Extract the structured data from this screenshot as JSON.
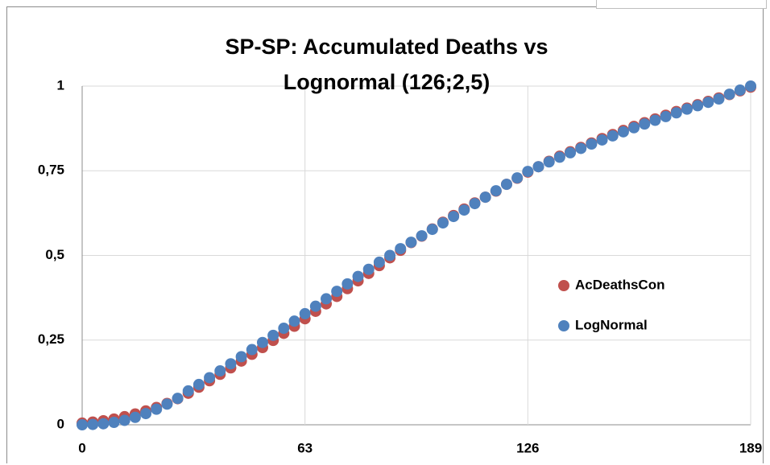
{
  "chart_data": {
    "type": "scatter",
    "title": "SP-SP: Accumulated Deaths vs Lognormal (126;2,5)",
    "x": [
      0,
      3,
      6,
      9,
      12,
      15,
      18,
      21,
      24,
      27,
      30,
      33,
      36,
      39,
      42,
      45,
      48,
      51,
      54,
      57,
      60,
      63,
      66,
      69,
      72,
      75,
      78,
      81,
      84,
      87,
      90,
      93,
      96,
      99,
      102,
      105,
      108,
      111,
      114,
      117,
      120,
      123,
      126,
      129,
      132,
      135,
      138,
      141,
      144,
      147,
      150,
      153,
      156,
      159,
      162,
      165,
      168,
      171,
      174,
      177,
      180,
      183,
      186,
      189
    ],
    "series": [
      {
        "name": "AcDeathsCon",
        "color": "#c0504d",
        "values": [
          0.005,
          0.008,
          0.012,
          0.017,
          0.024,
          0.032,
          0.041,
          0.051,
          0.063,
          0.077,
          0.093,
          0.111,
          0.13,
          0.149,
          0.168,
          0.188,
          0.208,
          0.228,
          0.249,
          0.27,
          0.291,
          0.313,
          0.335,
          0.357,
          0.379,
          0.402,
          0.425,
          0.447,
          0.47,
          0.493,
          0.515,
          0.538,
          0.557,
          0.578,
          0.598,
          0.618,
          0.637,
          0.655,
          0.672,
          0.69,
          0.71,
          0.728,
          0.746,
          0.762,
          0.778,
          0.793,
          0.806,
          0.819,
          0.832,
          0.845,
          0.857,
          0.869,
          0.881,
          0.892,
          0.903,
          0.914,
          0.925,
          0.935,
          0.945,
          0.955,
          0.965,
          0.975,
          0.986,
          0.997
        ]
      },
      {
        "name": "LogNormal",
        "color": "#4f81bd",
        "values": [
          0,
          0.001,
          0.003,
          0.007,
          0.013,
          0.022,
          0.033,
          0.046,
          0.061,
          0.078,
          0.1,
          0.119,
          0.139,
          0.159,
          0.18,
          0.201,
          0.222,
          0.243,
          0.264,
          0.285,
          0.306,
          0.328,
          0.35,
          0.372,
          0.394,
          0.416,
          0.438,
          0.459,
          0.48,
          0.5,
          0.52,
          0.539,
          0.558,
          0.577,
          0.596,
          0.615,
          0.634,
          0.653,
          0.672,
          0.691,
          0.71,
          0.729,
          0.748,
          0.762,
          0.776,
          0.79,
          0.803,
          0.816,
          0.829,
          0.841,
          0.853,
          0.865,
          0.877,
          0.888,
          0.899,
          0.91,
          0.921,
          0.932,
          0.942,
          0.952,
          0.962,
          0.976,
          0.988,
          1.0
        ]
      }
    ],
    "xlim": [
      0,
      189
    ],
    "xticks": [
      0,
      63,
      126,
      189
    ],
    "ylim": [
      0,
      1
    ],
    "yticks": [
      0,
      {
        "value": 0.25,
        "label": "0,25"
      },
      {
        "value": 0.5,
        "label": "0,5"
      },
      {
        "value": 0.75,
        "label": "0,75"
      },
      1
    ],
    "grid": true,
    "legend": "right"
  }
}
